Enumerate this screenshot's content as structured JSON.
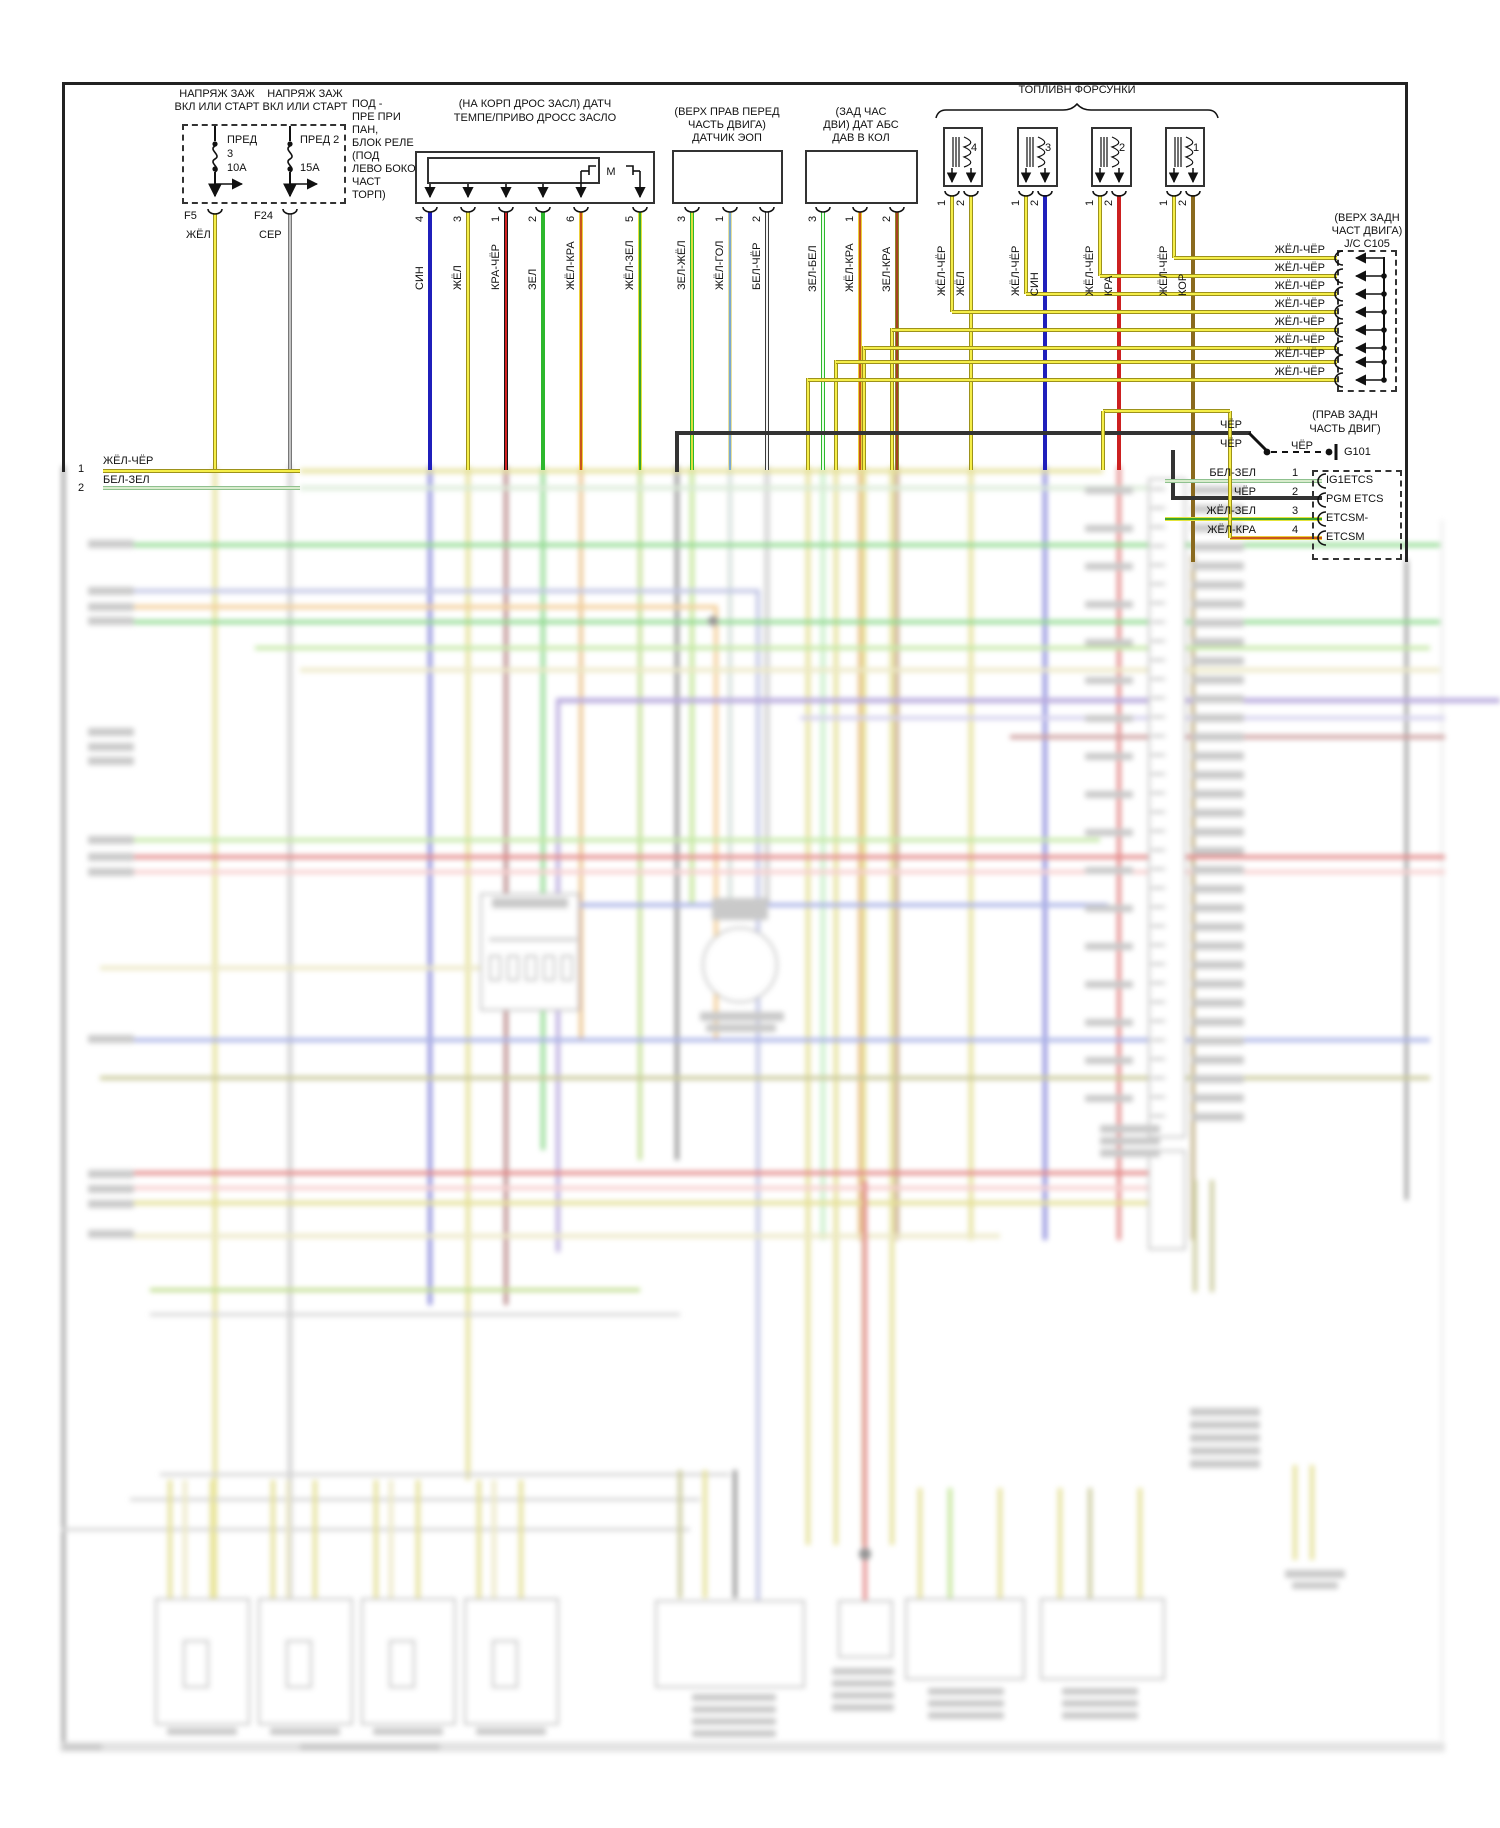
{
  "power": {
    "c1": {
      "t1": "НАПРЯЖ ЗАЖ",
      "t2": "ВКЛ ИЛИ СТАРТ",
      "f1": "ПРЕД",
      "f2": "3",
      "f3": "10А",
      "conn": "F5",
      "wire": "ЖЁЛ"
    },
    "c2": {
      "t1": "НАПРЯЖ ЗАЖ",
      "t2": "ВКЛ ИЛИ СТАРТ",
      "f1": "ПРЕД 2",
      "f2": "15А",
      "conn": "F24",
      "wire": "СЕР"
    },
    "note": "ПОД -\nПРЕ ПРИ\nПАН,\nБЛОК РЕЛЕ\n(ПОД\nЛЕВО БОКО\nЧАСТ\nТОРП)"
  },
  "throttle": {
    "t1": "(НА КОРП ДРОС ЗАСЛ) ДАТЧ",
    "t2": "ТЕМПЕ/ПРИВО ДРОСС ЗАСЛО",
    "motor": "M",
    "pins": [
      {
        "n": "4",
        "w": "СИН"
      },
      {
        "n": "3",
        "w": "ЖЁЛ"
      },
      {
        "n": "1",
        "w": "КРА-ЧЁР"
      },
      {
        "n": "2",
        "w": "ЗЕЛ"
      },
      {
        "n": "6",
        "w": "ЖЁЛ-КРА"
      },
      {
        "n": "5",
        "w": "ЖЁЛ-ЗЕЛ"
      }
    ]
  },
  "eop": {
    "t1": "(ВЕРХ ПРАВ ПЕРЕД",
    "t2": "ЧАСТЬ ДВИГА)",
    "t3": "ДАТЧИК ЭОП",
    "pins": [
      {
        "n": "3",
        "w": "ЗЕЛ-ЖЁЛ"
      },
      {
        "n": "1",
        "w": "ЖЁЛ-ГОЛ"
      },
      {
        "n": "2",
        "w": "БЕЛ-ЧЁР"
      }
    ]
  },
  "abs": {
    "t1": "(ЗАД ЧАС",
    "t2": "ДВИ) ДАТ АБС",
    "t3": "ДАВ В КОЛ",
    "pins": [
      {
        "n": "3",
        "w": "ЗЕЛ-БЕЛ"
      },
      {
        "n": "1",
        "w": "ЖЁЛ-КРА"
      },
      {
        "n": "2",
        "w": "ЗЕЛ-КРА"
      }
    ]
  },
  "injectors": {
    "title": "ТОПЛИВН ФОРСУНКИ",
    "units": [
      {
        "num": "4",
        "p1": "1",
        "w1": "ЖЁЛ-ЧЁР",
        "p2": "2",
        "w2": "ЖЁЛ"
      },
      {
        "num": "3",
        "p1": "1",
        "w1": "ЖЁЛ-ЧЁР",
        "p2": "2",
        "w2": "СИН"
      },
      {
        "num": "2",
        "p1": "1",
        "w1": "ЖЁЛ-ЧЁР",
        "p2": "2",
        "w2": "КРА"
      },
      {
        "num": "1",
        "p1": "1",
        "w1": "ЖЁЛ-ЧЁР",
        "p2": "2",
        "w2": "КОР"
      }
    ]
  },
  "jc105": {
    "t1": "(ВЕРХ ЗАДН",
    "t2": "ЧАСТ ДВИГА)",
    "t3": "J/C C105",
    "rows": [
      "ЖЁЛ-ЧЁР",
      "ЖЁЛ-ЧЁР",
      "ЖЁЛ-ЧЁР",
      "ЖЁЛ-ЧЁР",
      "ЖЁЛ-ЧЁР",
      "ЖЁЛ-ЧЁР",
      "ЖЁЛ-ЧЁР",
      "ЖЁЛ-ЧЁР"
    ]
  },
  "ground": {
    "w1": "ЧЁР",
    "w2": "ЧЁР",
    "w3": "ЧЁР",
    "t1": "(ПРАВ ЗАДН",
    "t2": "ЧАСТЬ ДВИГ)",
    "name": "G101"
  },
  "ecu": {
    "rows": [
      {
        "w": "БЕЛ-ЗЕЛ",
        "pin": "1",
        "label": "IG1ETCS"
      },
      {
        "w": "ЧЁР",
        "pin": "2",
        "label": "PGM ETCS"
      },
      {
        "w": "ЖЁЛ-ЗЕЛ",
        "pin": "3",
        "label": "ETCSM-"
      },
      {
        "w": "ЖЁЛ-КРА",
        "pin": "4",
        "label": "ETCSM"
      }
    ]
  },
  "left_rows": [
    {
      "n": "1",
      "w": "ЖЁЛ-ЧЁР"
    },
    {
      "n": "2",
      "w": "БЕЛ-ЗЕЛ"
    }
  ],
  "wire_palette": {
    "ЖЁЛ": "#f5ee49",
    "СЕР": "#c2c2c2",
    "СИН": "#1f1fbb",
    "КРА": "#cc2020",
    "ЗЕЛ": "#2db82d",
    "КОР": "#8a6a1e",
    "ЧЁР": "#333333",
    "БЕЛ": "#f4f4f4"
  }
}
